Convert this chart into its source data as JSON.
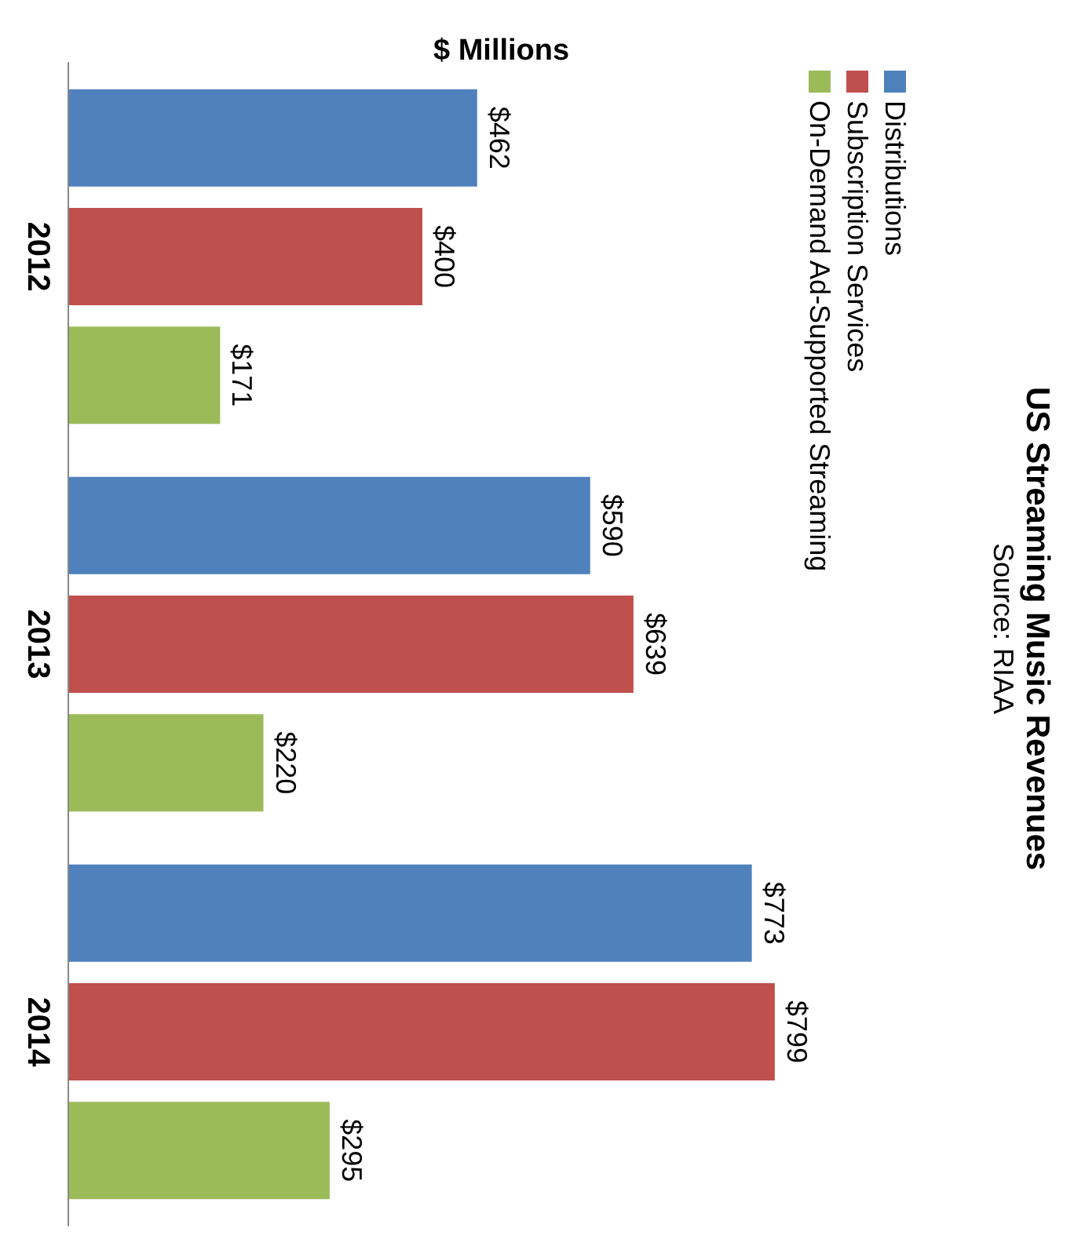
{
  "chart_data": {
    "type": "bar",
    "title": "US Streaming Music Revenues",
    "subtitle": "Source: RIAA",
    "ylabel": "$ Millions",
    "categories": [
      "2012",
      "2013",
      "2014"
    ],
    "series": [
      {
        "name": "Distributions",
        "color": "#4f81bd",
        "values": [
          462,
          590,
          773
        ],
        "value_labels": [
          "$462",
          "$590",
          "$773"
        ]
      },
      {
        "name": "Subscription Services",
        "color": "#c0504d",
        "values": [
          400,
          639,
          799
        ],
        "value_labels": [
          "$400",
          "$639",
          "$799"
        ]
      },
      {
        "name": "On-Demand Ad-Supported Streaming",
        "color": "#9bbb59",
        "values": [
          171,
          220,
          295
        ],
        "value_labels": [
          "$171",
          "$220",
          "$295"
        ]
      }
    ],
    "legend": "top right",
    "orientation": "horizontal"
  }
}
